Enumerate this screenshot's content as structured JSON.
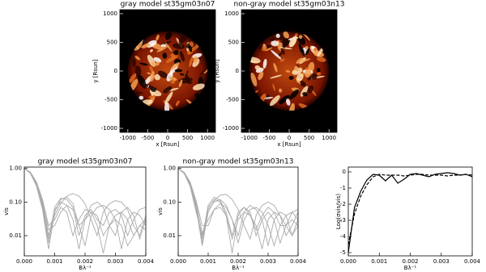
{
  "chart_data": [
    {
      "type": "image",
      "title": "gray model st35gm03n07",
      "xlabel": "x [Rsun]",
      "ylabel": "y [Rsun]",
      "xlim": [
        -1200,
        1200
      ],
      "ylim": [
        -1070,
        1070
      ],
      "xticks": [
        -1000,
        -500,
        0,
        500,
        1000
      ],
      "yticks": [
        -1000,
        -500,
        0,
        500,
        1000
      ]
    },
    {
      "type": "image",
      "title": "non-gray model st35gm03n13",
      "xlabel": "x [Rsun]",
      "ylabel": "y [Rsun]",
      "xlim": [
        -1200,
        1200
      ],
      "ylim": [
        -1070,
        1070
      ],
      "xticks": [
        -1000,
        -500,
        0,
        500,
        1000
      ],
      "yticks": [
        -1000,
        -500,
        0,
        500,
        1000
      ]
    },
    {
      "type": "line",
      "title": "gray model st35gm03n07",
      "xlabel": "Bλ⁻¹",
      "ylabel": "vis",
      "log_y": true,
      "color": "#aaaaaa",
      "xlim": [
        0,
        0.004
      ],
      "ylim": [
        0.0025,
        1.1
      ],
      "xticks": [
        {
          "value": 0,
          "label": "0.000"
        },
        {
          "value": 0.001,
          "label": "0.001"
        },
        {
          "value": 0.002,
          "label": "0.002"
        },
        {
          "value": 0.003,
          "label": "0.003"
        },
        {
          "value": 0.004,
          "label": "0.004"
        }
      ],
      "yticks": [
        {
          "value": 1,
          "label": "1.00"
        },
        {
          "value": 0.1,
          "label": "0.10"
        },
        {
          "value": 0.01,
          "label": "0.01"
        }
      ],
      "x": [
        0,
        0.0002,
        0.0004,
        0.0006,
        0.0008,
        0.001,
        0.0012,
        0.0014,
        0.0016,
        0.0018,
        0.002,
        0.0022,
        0.0024,
        0.0026,
        0.0028,
        0.003,
        0.0032,
        0.0034,
        0.0036,
        0.0038,
        0.004
      ],
      "series": [
        {
          "values": [
            1.0,
            0.75,
            0.35,
            0.09,
            0.01,
            0.06,
            0.1,
            0.08,
            0.03,
            0.004,
            0.03,
            0.05,
            0.04,
            0.01,
            0.02,
            0.03,
            0.02,
            0.005,
            0.01,
            0.02,
            0.015
          ]
        },
        {
          "values": [
            1.0,
            0.72,
            0.3,
            0.06,
            0.004,
            0.05,
            0.12,
            0.14,
            0.09,
            0.02,
            0.03,
            0.08,
            0.1,
            0.07,
            0.02,
            0.01,
            0.05,
            0.07,
            0.04,
            0.008,
            0.03
          ]
        },
        {
          "values": [
            1.0,
            0.78,
            0.4,
            0.12,
            0.02,
            0.03,
            0.07,
            0.05,
            0.01,
            0.03,
            0.06,
            0.05,
            0.02,
            0.003,
            0.02,
            0.04,
            0.05,
            0.03,
            0.01,
            0.02,
            0.03
          ]
        },
        {
          "values": [
            1.0,
            0.74,
            0.33,
            0.08,
            0.008,
            0.04,
            0.09,
            0.15,
            0.18,
            0.15,
            0.09,
            0.03,
            0.01,
            0.05,
            0.09,
            0.11,
            0.1,
            0.06,
            0.02,
            0.01,
            0.04
          ]
        },
        {
          "values": [
            1.0,
            0.76,
            0.37,
            0.1,
            0.015,
            0.02,
            0.05,
            0.08,
            0.06,
            0.02,
            0.005,
            0.04,
            0.07,
            0.08,
            0.06,
            0.03,
            0.004,
            0.03,
            0.05,
            0.04,
            0.02
          ]
        },
        {
          "values": [
            1.0,
            0.73,
            0.32,
            0.07,
            0.006,
            0.07,
            0.13,
            0.12,
            0.07,
            0.01,
            0.04,
            0.06,
            0.03,
            0.02,
            0.05,
            0.06,
            0.04,
            0.01,
            0.03,
            0.06,
            0.07
          ]
        }
      ]
    },
    {
      "type": "line",
      "title": "non-gray model st35gm03n13",
      "xlabel": "Bλ⁻¹",
      "ylabel": "vis",
      "log_y": true,
      "color": "#aaaaaa",
      "xlim": [
        0,
        0.004
      ],
      "ylim": [
        0.0025,
        1.1
      ],
      "xticks": [
        {
          "value": 0,
          "label": "0.000"
        },
        {
          "value": 0.001,
          "label": "0.001"
        },
        {
          "value": 0.002,
          "label": "0.002"
        },
        {
          "value": 0.003,
          "label": "0.003"
        },
        {
          "value": 0.004,
          "label": "0.004"
        }
      ],
      "yticks": [
        {
          "value": 1,
          "label": "1.00"
        },
        {
          "value": 0.1,
          "label": "0.10"
        },
        {
          "value": 0.01,
          "label": "0.01"
        }
      ],
      "x": [
        0,
        0.0002,
        0.0004,
        0.0006,
        0.0008,
        0.001,
        0.0012,
        0.0014,
        0.0016,
        0.0018,
        0.002,
        0.0022,
        0.0024,
        0.0026,
        0.0028,
        0.003,
        0.0032,
        0.0034,
        0.0036,
        0.0038,
        0.004
      ],
      "series": [
        {
          "values": [
            1.0,
            0.74,
            0.34,
            0.08,
            0.006,
            0.07,
            0.12,
            0.1,
            0.04,
            0.003,
            0.04,
            0.07,
            0.05,
            0.01,
            0.03,
            0.05,
            0.03,
            0.006,
            0.02,
            0.03,
            0.02
          ]
        },
        {
          "values": [
            1.0,
            0.71,
            0.29,
            0.05,
            0.01,
            0.06,
            0.1,
            0.12,
            0.08,
            0.03,
            0.01,
            0.05,
            0.08,
            0.06,
            0.03,
            0.005,
            0.03,
            0.05,
            0.04,
            0.01,
            0.02
          ]
        },
        {
          "values": [
            1.0,
            0.77,
            0.39,
            0.11,
            0.02,
            0.02,
            0.06,
            0.07,
            0.04,
            0.008,
            0.03,
            0.05,
            0.04,
            0.02,
            0.004,
            0.03,
            0.05,
            0.04,
            0.02,
            0.01,
            0.03
          ]
        },
        {
          "values": [
            1.0,
            0.73,
            0.31,
            0.07,
            0.005,
            0.05,
            0.11,
            0.16,
            0.17,
            0.12,
            0.06,
            0.02,
            0.008,
            0.04,
            0.08,
            0.1,
            0.08,
            0.04,
            0.01,
            0.02,
            0.05
          ]
        },
        {
          "values": [
            1.0,
            0.75,
            0.36,
            0.09,
            0.012,
            0.03,
            0.06,
            0.09,
            0.07,
            0.03,
            0.006,
            0.03,
            0.06,
            0.07,
            0.05,
            0.02,
            0.005,
            0.02,
            0.04,
            0.05,
            0.03
          ]
        },
        {
          "values": [
            1.0,
            0.72,
            0.31,
            0.06,
            0.008,
            0.08,
            0.14,
            0.11,
            0.05,
            0.01,
            0.05,
            0.07,
            0.04,
            0.015,
            0.04,
            0.07,
            0.05,
            0.02,
            0.02,
            0.05,
            0.06
          ]
        }
      ]
    },
    {
      "type": "line",
      "xlabel": "Bλ⁻¹",
      "ylabel": "Log(σvis/vis)",
      "color": "#000000",
      "xlim": [
        0,
        0.004
      ],
      "ylim": [
        -5.2,
        0.3
      ],
      "xticks": [
        {
          "value": 0,
          "label": "0.000"
        },
        {
          "value": 0.001,
          "label": "0.001"
        },
        {
          "value": 0.002,
          "label": "0.002"
        },
        {
          "value": 0.003,
          "label": "0.003"
        },
        {
          "value": 0.004,
          "label": "0.004"
        }
      ],
      "yticks": [
        0,
        -1,
        -2,
        -3,
        -4,
        -5
      ],
      "x": [
        0,
        0.0002,
        0.0004,
        0.0006,
        0.0008,
        0.001,
        0.0012,
        0.0014,
        0.0016,
        0.0018,
        0.002,
        0.0022,
        0.0024,
        0.0026,
        0.0028,
        0.003,
        0.0032,
        0.0034,
        0.0036,
        0.0038,
        0.004
      ],
      "series": [
        {
          "values": [
            -5,
            -2.2,
            -1.2,
            -0.5,
            -0.15,
            -0.2,
            -0.55,
            -0.2,
            -0.7,
            -0.45,
            -0.15,
            -0.1,
            -0.2,
            -0.3,
            -0.15,
            -0.1,
            -0.05,
            -0.1,
            -0.2,
            -0.15,
            -0.3
          ]
        },
        {
          "dash": true,
          "values": [
            -4.5,
            -2.6,
            -1.5,
            -0.8,
            -0.3,
            -0.15,
            -0.2,
            -0.2,
            -0.2,
            -0.25,
            -0.2,
            -0.15,
            -0.15,
            -0.2,
            -0.2,
            -0.2,
            -0.25,
            -0.2,
            -0.2,
            -0.15,
            -0.2
          ]
        }
      ]
    }
  ]
}
